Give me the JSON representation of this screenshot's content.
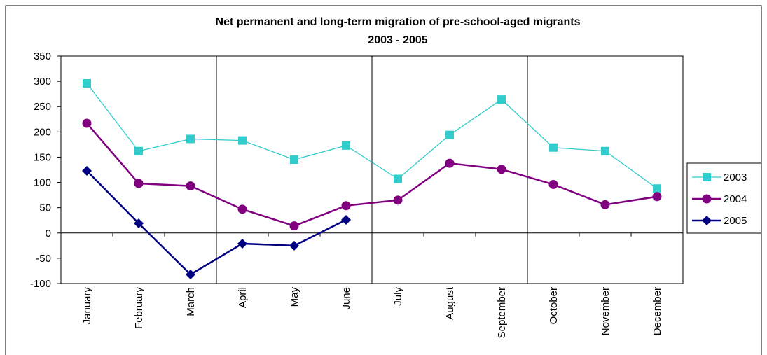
{
  "chart_data": {
    "type": "line",
    "title": "Net permanent and long-term migration of pre-school-aged migrants",
    "subtitle": "2003 - 2005",
    "categories": [
      "January",
      "February",
      "March",
      "April",
      "May",
      "June",
      "July",
      "August",
      "September",
      "October",
      "November",
      "December"
    ],
    "series": [
      {
        "name": "2003",
        "color": "#33cccc",
        "marker": "square",
        "values": [
          296,
          162,
          186,
          183,
          145,
          173,
          107,
          194,
          264,
          169,
          162,
          88
        ]
      },
      {
        "name": "2004",
        "color": "#800080",
        "marker": "circle",
        "values": [
          217,
          98,
          93,
          47,
          14,
          54,
          65,
          138,
          126,
          96,
          56,
          72
        ]
      },
      {
        "name": "2005",
        "color": "#000080",
        "marker": "diamond",
        "values": [
          123,
          19,
          -82,
          -21,
          -25,
          26,
          null,
          null,
          null,
          null,
          null,
          null
        ]
      }
    ],
    "ylim": [
      -100,
      350
    ],
    "yticks": [
      -100,
      -50,
      0,
      50,
      100,
      150,
      200,
      250,
      300,
      350
    ],
    "grid": false,
    "legend": "right"
  }
}
